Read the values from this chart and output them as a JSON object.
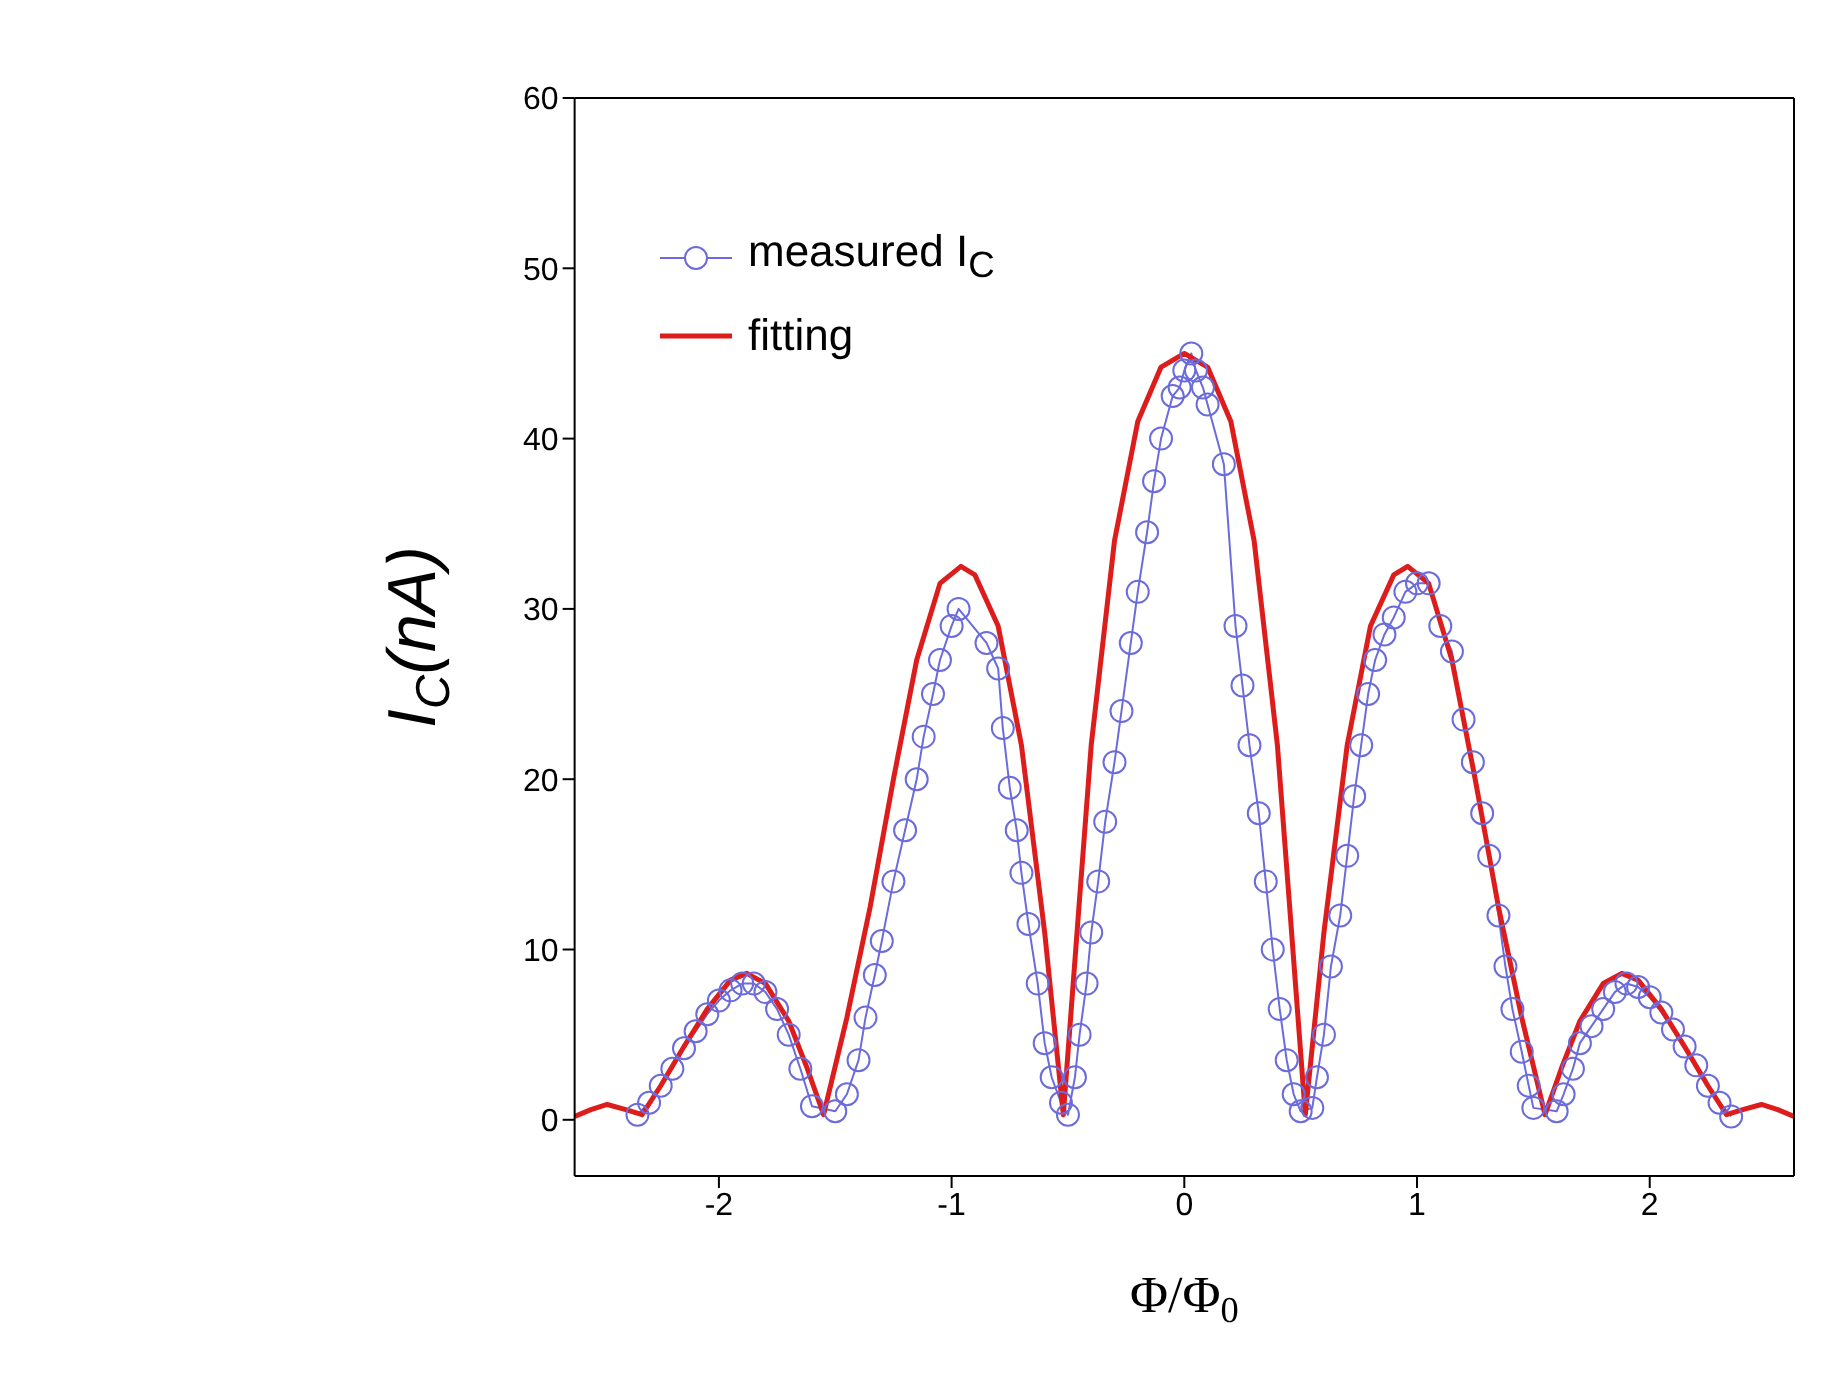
{
  "chart_data": {
    "type": "line",
    "xlabel": "Φ/Φ$_{0}$",
    "ylabel": "I$_{C}$(nA)",
    "xlim": [
      -2.62,
      2.62
    ],
    "ylim": [
      -3.3,
      60
    ],
    "xticks": [
      -2,
      -1,
      0,
      1,
      2
    ],
    "yticks": [
      0,
      10,
      20,
      30,
      40,
      50,
      60
    ],
    "grid": false,
    "legend": "top left",
    "series": [
      {
        "name": "measured I$_{C}$",
        "color": "#6b6bdc",
        "marker": "circle",
        "line_style": "solid",
        "x": [
          -2.35,
          -2.3,
          -2.25,
          -2.2,
          -2.15,
          -2.1,
          -2.05,
          -2.0,
          -1.95,
          -1.9,
          -1.85,
          -1.8,
          -1.75,
          -1.7,
          -1.65,
          -1.6,
          -1.5,
          -1.45,
          -1.4,
          -1.37,
          -1.33,
          -1.3,
          -1.25,
          -1.2,
          -1.15,
          -1.12,
          -1.08,
          -1.05,
          -1.0,
          -0.97,
          -0.85,
          -0.8,
          -0.78,
          -0.75,
          -0.72,
          -0.7,
          -0.67,
          -0.63,
          -0.6,
          -0.57,
          -0.53,
          -0.5,
          -0.47,
          -0.45,
          -0.42,
          -0.4,
          -0.37,
          -0.34,
          -0.3,
          -0.27,
          -0.23,
          -0.2,
          -0.16,
          -0.13,
          -0.1,
          -0.05,
          -0.02,
          0.0,
          0.03,
          0.05,
          0.08,
          0.1,
          0.17,
          0.22,
          0.25,
          0.28,
          0.32,
          0.35,
          0.38,
          0.41,
          0.44,
          0.47,
          0.5,
          0.55,
          0.57,
          0.6,
          0.63,
          0.67,
          0.7,
          0.73,
          0.76,
          0.79,
          0.82,
          0.86,
          0.9,
          0.95,
          1.0,
          1.05,
          1.1,
          1.15,
          1.2,
          1.24,
          1.28,
          1.31,
          1.35,
          1.38,
          1.41,
          1.45,
          1.48,
          1.5,
          1.6,
          1.63,
          1.67,
          1.7,
          1.75,
          1.8,
          1.85,
          1.9,
          1.95,
          2.0,
          2.05,
          2.1,
          2.15,
          2.2,
          2.25,
          2.3,
          2.35
        ],
        "values": [
          0.3,
          1,
          2,
          3,
          4.2,
          5.2,
          6.2,
          7,
          7.6,
          8,
          8,
          7.5,
          6.5,
          5,
          3,
          0.8,
          0.5,
          1.5,
          3.5,
          6,
          8.5,
          10.5,
          14,
          17,
          20,
          22.5,
          25,
          27,
          29,
          30,
          28,
          26.5,
          23,
          19.5,
          17,
          14.5,
          11.5,
          8,
          4.5,
          2.5,
          1,
          0.3,
          2.5,
          5,
          8,
          11,
          14,
          17.5,
          21,
          24,
          28,
          31,
          34.5,
          37.5,
          40,
          42.5,
          43,
          44,
          45,
          44,
          43,
          42,
          38.5,
          29,
          25.5,
          22,
          18,
          14,
          10,
          6.5,
          3.5,
          1.5,
          0.5,
          0.7,
          2.5,
          5,
          9,
          12,
          15.5,
          19,
          22,
          25,
          27,
          28.5,
          29.5,
          31,
          31.5,
          31.5,
          29,
          27.5,
          23.5,
          21,
          18,
          15.5,
          12,
          9,
          6.5,
          4,
          2,
          0.7,
          0.5,
          1.5,
          3,
          4.5,
          5.5,
          6.5,
          7.5,
          8,
          7.8,
          7.2,
          6.3,
          5.3,
          4.3,
          3.2,
          2,
          1,
          0.2
        ]
      },
      {
        "name": "fitting",
        "color": "#dd1c1c",
        "marker": "none",
        "line_style": "solid",
        "x": [
          -2.62,
          -2.55,
          -2.48,
          -2.4,
          -2.33,
          -2.25,
          -2.15,
          -2.05,
          -1.95,
          -1.88,
          -1.8,
          -1.7,
          -1.62,
          -1.55,
          -1.45,
          -1.35,
          -1.25,
          -1.15,
          -1.05,
          -0.96,
          -0.9,
          -0.8,
          -0.7,
          -0.6,
          -0.52,
          -0.45,
          -0.4,
          -0.3,
          -0.2,
          -0.1,
          0,
          0.1,
          0.2,
          0.3,
          0.4,
          0.45,
          0.52,
          0.6,
          0.7,
          0.8,
          0.9,
          0.96,
          1.05,
          1.15,
          1.25,
          1.35,
          1.45,
          1.55,
          1.62,
          1.7,
          1.8,
          1.88,
          1.95,
          2.05,
          2.15,
          2.25,
          2.33,
          2.4,
          2.48,
          2.55,
          2.62
        ],
        "values": [
          0.2,
          0.6,
          0.9,
          0.6,
          0.3,
          2,
          4.3,
          6.5,
          8.2,
          8.6,
          8,
          5.8,
          3,
          0.3,
          6,
          12.5,
          20,
          27,
          31.5,
          32.5,
          32,
          29,
          22,
          11,
          0.3,
          13,
          22,
          34,
          41,
          44.2,
          45,
          44.2,
          41,
          34,
          22,
          13,
          0.3,
          11,
          22,
          29,
          32,
          32.5,
          31.5,
          27,
          20,
          12.5,
          6,
          0.3,
          3,
          5.8,
          8,
          8.6,
          8.2,
          6.5,
          4.3,
          2,
          0.3,
          0.6,
          0.9,
          0.6,
          0.2
        ]
      }
    ]
  }
}
